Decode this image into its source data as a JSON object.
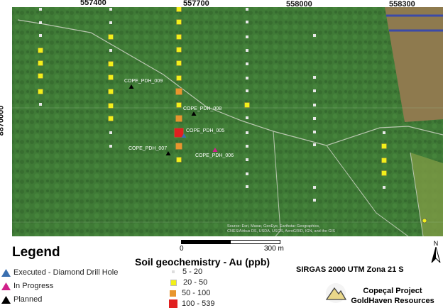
{
  "map": {
    "x_ticks": [
      "557400",
      "557700",
      "558000",
      "558300"
    ],
    "y_ticks": [
      "8870000"
    ],
    "attribution": [
      "Source: Esri, Maxar, GeoEye, Earthstar Geographics,",
      "CNES/Airbus DS, USDA, USGS, AeroGRID, IGN, and the GIS"
    ],
    "drill_holes": [
      {
        "label": "COPE_PDH_009",
        "status": "planned"
      },
      {
        "label": "COPE_PDH_008",
        "status": "planned"
      },
      {
        "label": "COPE_PDH_005",
        "status": "executed"
      },
      {
        "label": "COPE_PDH_007",
        "status": "planned"
      },
      {
        "label": "COPE_PDH_006",
        "status": "in_progress"
      }
    ]
  },
  "scale_bar": {
    "start": "0",
    "end": "300",
    "unit": "m"
  },
  "north_label": "N",
  "legend": {
    "title": "Legend",
    "items": [
      {
        "label": "Executed - Diamond Drill Hole",
        "color": "#3a6fb0"
      },
      {
        "label": "In Progress",
        "color": "#d0208a"
      },
      {
        "label": "Planned",
        "color": "#000000"
      }
    ]
  },
  "soil": {
    "title": "Soil geochemistry - Au (ppb)",
    "classes": [
      {
        "label": "5 - 20",
        "color": "#e6e6e6"
      },
      {
        "label": "20 - 50",
        "color": "#f2f01a"
      },
      {
        "label": "50 - 100",
        "color": "#e8962e"
      },
      {
        "label": "100 - 539",
        "color": "#e02020"
      }
    ]
  },
  "crs": "SIRGAS 2000 UTM Zona 21 S",
  "project": {
    "line1": "Copeçal Project",
    "line2": "GoldHaven Resources"
  }
}
